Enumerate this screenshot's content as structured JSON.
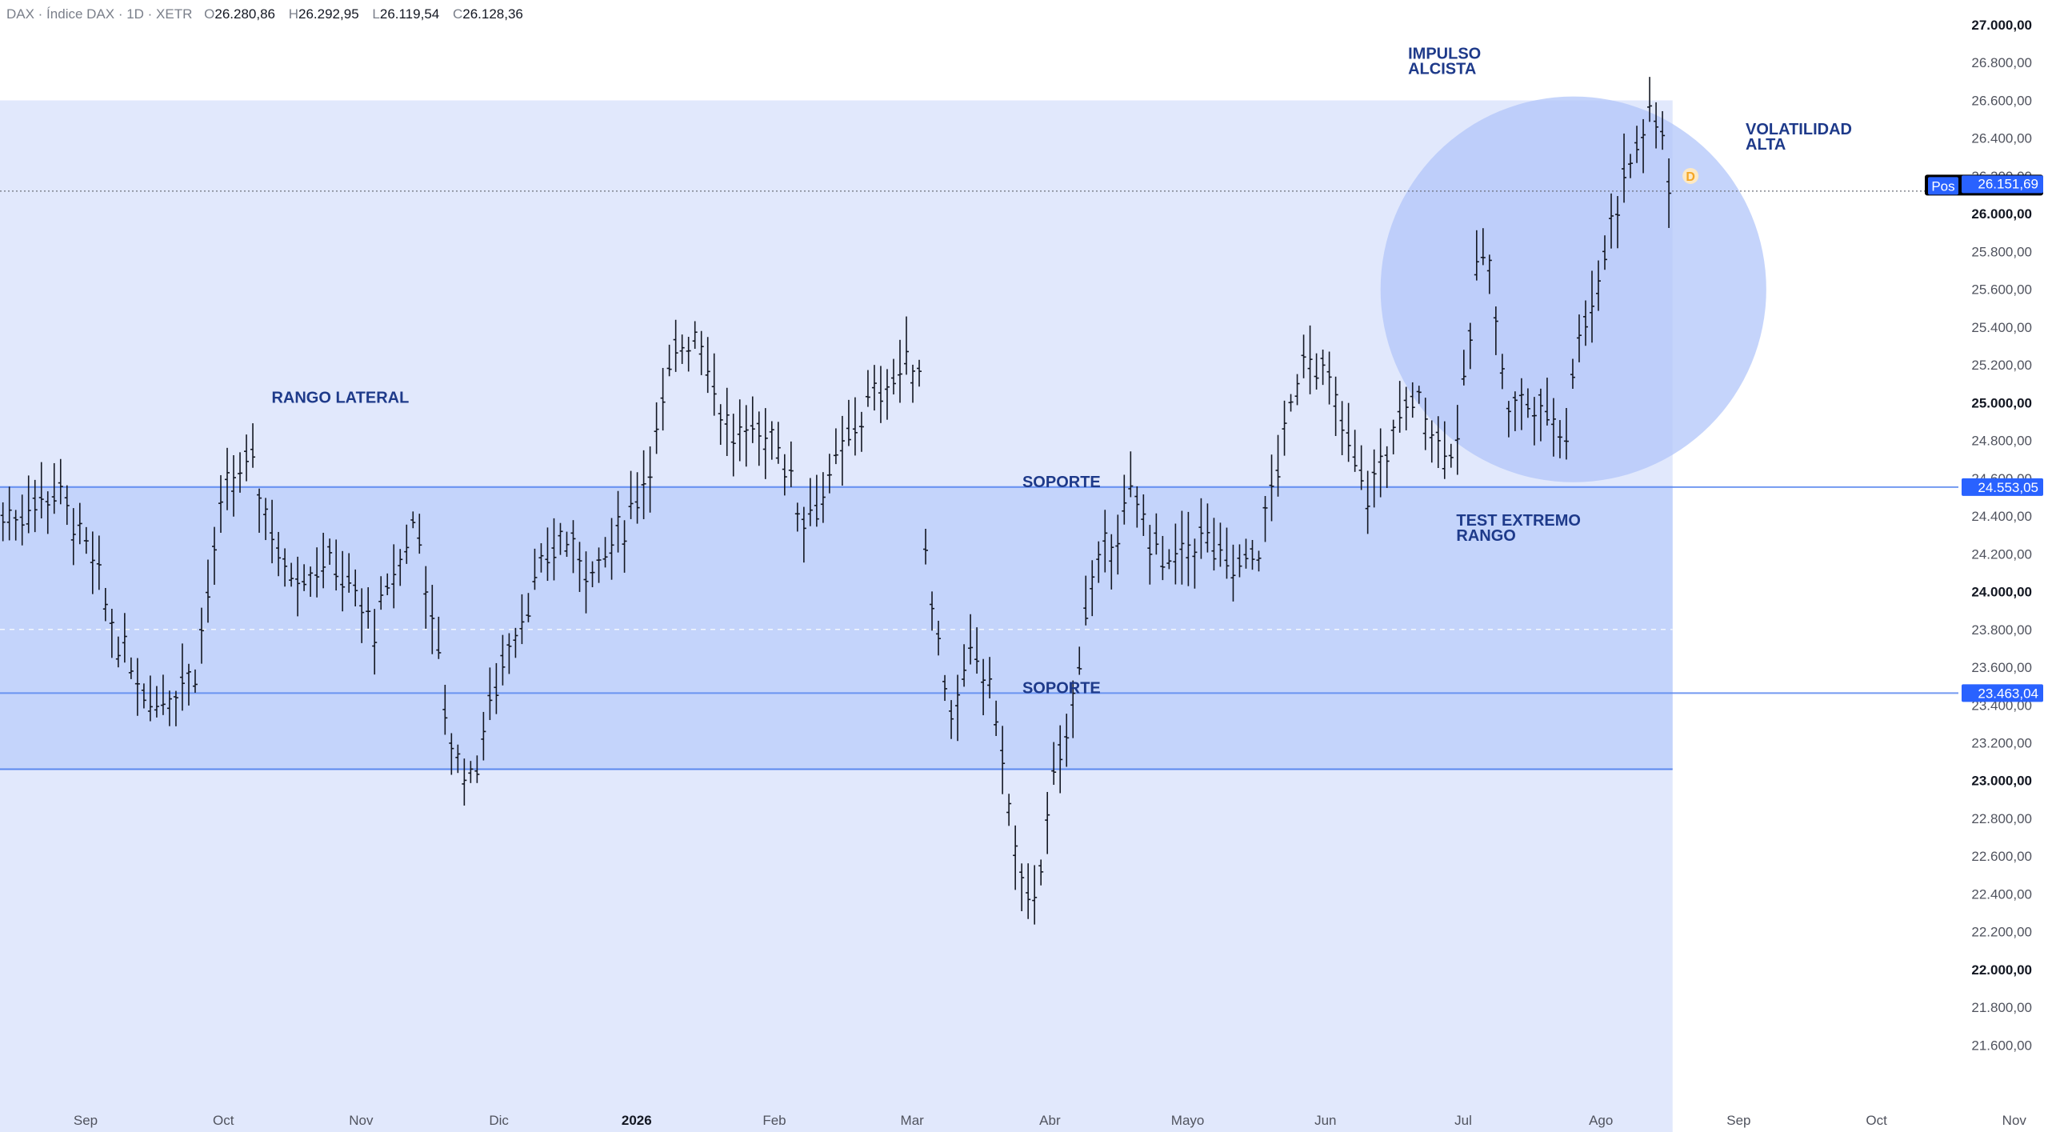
{
  "header": {
    "symbol": "DAX · Índice DAX · 1D · XETR",
    "o_label": "O",
    "o_value": "26.280,86",
    "h_label": "H",
    "h_value": "26.292,95",
    "l_label": "L",
    "l_value": "26.119,54",
    "c_label": "C",
    "c_value": "26.128,36"
  },
  "chart_data": {
    "type": "bar",
    "subtype": "ohlc",
    "y_range": [
      21500,
      27000
    ],
    "y_ticks": [
      {
        "v": 27000,
        "label": "27.000,00",
        "major": true
      },
      {
        "v": 26800,
        "label": "26.800,00"
      },
      {
        "v": 26600,
        "label": "26.600,00"
      },
      {
        "v": 26400,
        "label": "26.400,00"
      },
      {
        "v": 26200,
        "label": "26.200,00"
      },
      {
        "v": 26000,
        "label": "26.000,00",
        "major": true
      },
      {
        "v": 25800,
        "label": "25.800,00"
      },
      {
        "v": 25600,
        "label": "25.600,00"
      },
      {
        "v": 25400,
        "label": "25.400,00"
      },
      {
        "v": 25200,
        "label": "25.200,00"
      },
      {
        "v": 25000,
        "label": "25.000,00",
        "major": true
      },
      {
        "v": 24800,
        "label": "24.800,00"
      },
      {
        "v": 24600,
        "label": "24.600,00"
      },
      {
        "v": 24400,
        "label": "24.400,00"
      },
      {
        "v": 24200,
        "label": "24.200,00"
      },
      {
        "v": 24000,
        "label": "24.000,00",
        "major": true
      },
      {
        "v": 23800,
        "label": "23.800,00"
      },
      {
        "v": 23600,
        "label": "23.600,00"
      },
      {
        "v": 23400,
        "label": "23.400,00"
      },
      {
        "v": 23200,
        "label": "23.200,00"
      },
      {
        "v": 23000,
        "label": "23.000,00",
        "major": true
      },
      {
        "v": 22800,
        "label": "22.800,00"
      },
      {
        "v": 22600,
        "label": "22.600,00"
      },
      {
        "v": 22400,
        "label": "22.400,00"
      },
      {
        "v": 22200,
        "label": "22.200,00"
      },
      {
        "v": 22000,
        "label": "22.000,00",
        "major": true
      },
      {
        "v": 21800,
        "label": "21.800,00"
      },
      {
        "v": 21600,
        "label": "21.600,00"
      }
    ],
    "x_months": [
      {
        "label": "Sep",
        "month": 0
      },
      {
        "label": "Oct",
        "month": 1
      },
      {
        "label": "Nov",
        "month": 2
      },
      {
        "label": "Dic",
        "month": 3
      },
      {
        "label": "2026",
        "month": 4,
        "year": true
      },
      {
        "label": "Feb",
        "month": 5
      },
      {
        "label": "Mar",
        "month": 6
      },
      {
        "label": "Abr",
        "month": 7
      },
      {
        "label": "Mayo",
        "month": 8
      },
      {
        "label": "Jun",
        "month": 9
      },
      {
        "label": "Jul",
        "month": 10
      },
      {
        "label": "Ago",
        "month": 11
      },
      {
        "label": "Sep",
        "month": 12
      },
      {
        "label": "Oct",
        "month": 13
      },
      {
        "label": "Nov",
        "month": 14
      }
    ],
    "anchors": [
      [
        -0.5,
        24400
      ],
      [
        -0.2,
        24550
      ],
      [
        0.05,
        24150
      ],
      [
        0.25,
        23700
      ],
      [
        0.5,
        23400
      ],
      [
        0.8,
        23600
      ],
      [
        1.0,
        24500
      ],
      [
        1.2,
        24700
      ],
      [
        1.45,
        24100
      ],
      [
        1.8,
        24150
      ],
      [
        2.1,
        23800
      ],
      [
        2.4,
        24400
      ],
      [
        2.65,
        23200
      ],
      [
        2.8,
        23000
      ],
      [
        3.05,
        23700
      ],
      [
        3.45,
        24300
      ],
      [
        3.7,
        24100
      ],
      [
        3.95,
        24400
      ],
      [
        4.1,
        24700
      ],
      [
        4.3,
        25300
      ],
      [
        4.45,
        25400
      ],
      [
        4.55,
        25100
      ],
      [
        4.7,
        24800
      ],
      [
        5.0,
        24850
      ],
      [
        5.2,
        24400
      ],
      [
        5.35,
        24500
      ],
      [
        5.6,
        24900
      ],
      [
        5.8,
        25100
      ],
      [
        6.0,
        25200
      ],
      [
        6.05,
        25200
      ],
      [
        6.1,
        24200
      ],
      [
        6.2,
        23700
      ],
      [
        6.3,
        23300
      ],
      [
        6.45,
        23700
      ],
      [
        6.6,
        23400
      ],
      [
        6.75,
        22600
      ],
      [
        6.85,
        22300
      ],
      [
        7.0,
        22800
      ],
      [
        7.05,
        23100
      ],
      [
        7.15,
        23300
      ],
      [
        7.25,
        23900
      ],
      [
        7.4,
        24200
      ],
      [
        7.6,
        24500
      ],
      [
        7.85,
        24100
      ],
      [
        8.1,
        24300
      ],
      [
        8.3,
        24100
      ],
      [
        8.5,
        24200
      ],
      [
        8.7,
        24800
      ],
      [
        8.85,
        25300
      ],
      [
        9.0,
        25150
      ],
      [
        9.15,
        24800
      ],
      [
        9.3,
        24500
      ],
      [
        9.5,
        24850
      ],
      [
        9.65,
        25050
      ],
      [
        9.9,
        24700
      ],
      [
        10.0,
        25000
      ],
      [
        10.1,
        25700
      ],
      [
        10.2,
        25800
      ],
      [
        10.3,
        25000
      ],
      [
        10.45,
        25000
      ],
      [
        10.6,
        24950
      ],
      [
        10.75,
        24850
      ],
      [
        10.85,
        25450
      ],
      [
        10.95,
        25500
      ],
      [
        11.05,
        25900
      ],
      [
        11.15,
        26150
      ],
      [
        11.25,
        26350
      ],
      [
        11.35,
        26500
      ],
      [
        11.45,
        26450
      ],
      [
        11.5,
        26150
      ]
    ],
    "zones": {
      "range_high": 26600,
      "range_low": 21100,
      "inner_high": 24560,
      "inner_low": 23060,
      "zone_end_month": 11.52
    },
    "levels": [
      {
        "value": 24553.05,
        "label": "24.553,05",
        "text": "SOPORTE"
      },
      {
        "value": 23463.04,
        "label": "23.463,04",
        "text": "SOPORTE"
      }
    ],
    "current_price": {
      "value": 26151.69,
      "label": "26.151,69",
      "tag": "Pos",
      "dashed_level": 26120
    },
    "mid_dashed_level": 23800,
    "circle": {
      "center_month": 10.8,
      "center_value": 25600,
      "radius_months": 1.4
    },
    "event_marker": {
      "month": 11.65,
      "value": 26200,
      "text": "D"
    },
    "annotations": [
      {
        "text": [
          "RANGO LATERAL"
        ],
        "month": 1.35,
        "value": 25000
      },
      {
        "text": [
          "SOPORTE"
        ],
        "month": 6.8,
        "value": 24553
      },
      {
        "text": [
          "SOPORTE"
        ],
        "month": 6.8,
        "value": 23463
      },
      {
        "text": [
          "IMPULSO",
          "ALCISTA"
        ],
        "month": 9.6,
        "value": 26820
      },
      {
        "text": [
          "VOLATILIDAD",
          "ALTA"
        ],
        "month": 12.05,
        "value": 26420
      },
      {
        "text": [
          "TEST EXTREMO",
          "RANGO"
        ],
        "month": 9.95,
        "value": 24350
      }
    ],
    "colors": {
      "range_fill": "#e1e8fc",
      "inner_fill": "#c4d4fb",
      "circle_fill": "#b2c6fa",
      "level_line": "#5b87ee",
      "label_bg": "#2962ff",
      "bar": "#131722",
      "marker": "#f5a623",
      "annotation": "#1e3a8a",
      "tag_bg": "#000000"
    }
  }
}
